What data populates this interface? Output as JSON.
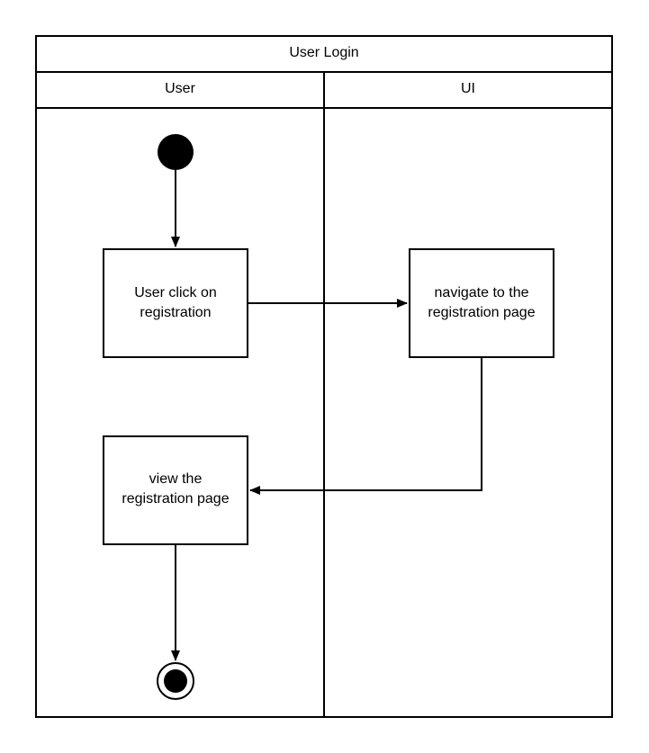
{
  "diagram": {
    "title": "User Login",
    "lanes": [
      {
        "label": "User"
      },
      {
        "label": "UI"
      }
    ],
    "nodes": {
      "click": {
        "line1": "User click on",
        "line2": "registration"
      },
      "navigate": {
        "line1": "navigate to the",
        "line2": "registration page"
      },
      "view": {
        "line1": "view the",
        "line2": "registration page"
      }
    },
    "colors": {
      "stroke": "#000000",
      "fill": "#ffffff",
      "node_fill": "#000000"
    }
  }
}
